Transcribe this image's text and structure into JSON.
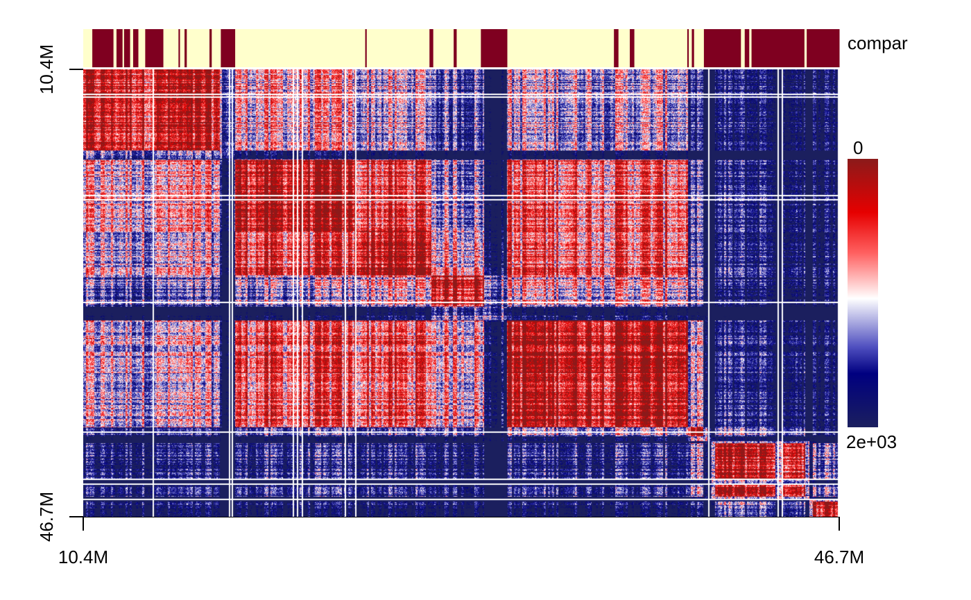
{
  "chart_data": {
    "type": "heatmap",
    "x_ticks": [
      "10.4M",
      "46.7M"
    ],
    "y_ticks": [
      "10.4M",
      "46.7M"
    ],
    "x_range": [
      "10.4M",
      "46.7M"
    ],
    "y_range": [
      "10.4M",
      "46.7M"
    ],
    "annotation_track": {
      "label": "compar",
      "colors": {
        "A": "#7f0020",
        "B": "#ffffcc"
      },
      "blocks": [
        {
          "start": 0.0,
          "end": 0.012,
          "class": "B"
        },
        {
          "start": 0.012,
          "end": 0.04,
          "class": "A"
        },
        {
          "start": 0.04,
          "end": 0.044,
          "class": "B"
        },
        {
          "start": 0.044,
          "end": 0.052,
          "class": "A"
        },
        {
          "start": 0.052,
          "end": 0.054,
          "class": "B"
        },
        {
          "start": 0.054,
          "end": 0.062,
          "class": "A"
        },
        {
          "start": 0.062,
          "end": 0.066,
          "class": "B"
        },
        {
          "start": 0.066,
          "end": 0.073,
          "class": "A"
        },
        {
          "start": 0.073,
          "end": 0.073,
          "class": "B"
        },
        {
          "start": 0.073,
          "end": 0.082,
          "class": "B"
        },
        {
          "start": 0.082,
          "end": 0.106,
          "class": "A"
        },
        {
          "start": 0.106,
          "end": 0.126,
          "class": "B"
        },
        {
          "start": 0.126,
          "end": 0.128,
          "class": "A"
        },
        {
          "start": 0.128,
          "end": 0.134,
          "class": "B"
        },
        {
          "start": 0.134,
          "end": 0.137,
          "class": "A"
        },
        {
          "start": 0.137,
          "end": 0.167,
          "class": "B"
        },
        {
          "start": 0.167,
          "end": 0.17,
          "class": "A"
        },
        {
          "start": 0.17,
          "end": 0.182,
          "class": "B"
        },
        {
          "start": 0.182,
          "end": 0.201,
          "class": "A"
        },
        {
          "start": 0.201,
          "end": 0.373,
          "class": "B"
        },
        {
          "start": 0.373,
          "end": 0.375,
          "class": "A"
        },
        {
          "start": 0.375,
          "end": 0.458,
          "class": "B"
        },
        {
          "start": 0.458,
          "end": 0.463,
          "class": "A"
        },
        {
          "start": 0.463,
          "end": 0.49,
          "class": "B"
        },
        {
          "start": 0.49,
          "end": 0.494,
          "class": "A"
        },
        {
          "start": 0.494,
          "end": 0.526,
          "class": "B"
        },
        {
          "start": 0.526,
          "end": 0.561,
          "class": "A"
        },
        {
          "start": 0.561,
          "end": 0.702,
          "class": "B"
        },
        {
          "start": 0.702,
          "end": 0.708,
          "class": "A"
        },
        {
          "start": 0.708,
          "end": 0.723,
          "class": "B"
        },
        {
          "start": 0.723,
          "end": 0.729,
          "class": "A"
        },
        {
          "start": 0.729,
          "end": 0.799,
          "class": "B"
        },
        {
          "start": 0.799,
          "end": 0.801,
          "class": "A"
        },
        {
          "start": 0.801,
          "end": 0.805,
          "class": "B"
        },
        {
          "start": 0.805,
          "end": 0.808,
          "class": "A"
        },
        {
          "start": 0.808,
          "end": 0.821,
          "class": "B"
        },
        {
          "start": 0.821,
          "end": 0.87,
          "class": "A"
        },
        {
          "start": 0.87,
          "end": 0.875,
          "class": "B"
        },
        {
          "start": 0.875,
          "end": 0.881,
          "class": "A"
        },
        {
          "start": 0.881,
          "end": 0.884,
          "class": "B"
        },
        {
          "start": 0.884,
          "end": 0.954,
          "class": "A"
        },
        {
          "start": 0.954,
          "end": 0.957,
          "class": "B"
        },
        {
          "start": 0.957,
          "end": 1.0,
          "class": "A"
        }
      ]
    },
    "color_scale": {
      "top_label": "0",
      "bottom_label": "2e+03",
      "stops": [
        "#8b1a1a",
        "#e60000",
        "#ff6060",
        "#ffffff",
        "#5050c0",
        "#000080",
        "#1b1f5e"
      ]
    },
    "block_structure": {
      "compartments": [
        {
          "start": 0.0,
          "end": 0.2,
          "class": "A"
        },
        {
          "start": 0.2,
          "end": 0.54,
          "class": "A"
        },
        {
          "start": 0.54,
          "end": 0.56,
          "class": "B"
        },
        {
          "start": 0.56,
          "end": 0.79,
          "class": "A"
        },
        {
          "start": 0.79,
          "end": 0.82,
          "class": "B"
        },
        {
          "start": 0.82,
          "end": 0.96,
          "class": "A"
        },
        {
          "start": 0.96,
          "end": 1.0,
          "class": "A"
        }
      ]
    }
  }
}
